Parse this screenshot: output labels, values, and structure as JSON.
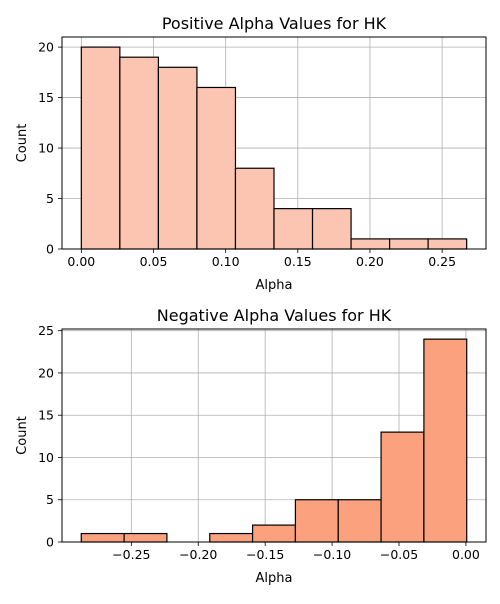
{
  "chart_data": [
    {
      "type": "bar",
      "title": "Positive Alpha Values for HK",
      "xlabel": "Alpha",
      "ylabel": "Count",
      "bin_edges": [
        0.0,
        0.0267,
        0.0534,
        0.0801,
        0.1068,
        0.1335,
        0.1602,
        0.1869,
        0.2136,
        0.2403,
        0.267
      ],
      "values": [
        20,
        19,
        18,
        16,
        8,
        4,
        4,
        1,
        1,
        1
      ],
      "xlim": [
        -0.0134,
        0.2804
      ],
      "ylim": [
        0,
        21
      ],
      "xticks": [
        0.0,
        0.05,
        0.1,
        0.15,
        0.2,
        0.25
      ],
      "xtick_labels": [
        "0.00",
        "0.05",
        "0.10",
        "0.15",
        "0.20",
        "0.25"
      ],
      "yticks": [
        0,
        5,
        10,
        15,
        20
      ],
      "ytick_labels": [
        "0",
        "5",
        "10",
        "15",
        "20"
      ],
      "grid": true,
      "bar_color": "#fcc5b1",
      "edge_color": "#000000"
    },
    {
      "type": "bar",
      "title": "Negative Alpha Values for HK",
      "xlabel": "Alpha",
      "ylabel": "Count",
      "bin_edges": [
        -0.2874,
        -0.2554,
        -0.2234,
        -0.1914,
        -0.1594,
        -0.1274,
        -0.0954,
        -0.0634,
        -0.0314,
        0.0006
      ],
      "values": [
        1,
        1,
        0,
        1,
        2,
        5,
        5,
        13,
        24
      ],
      "xlim": [
        -0.3018,
        0.015
      ],
      "ylim": [
        0,
        25.2
      ],
      "xticks": [
        -0.25,
        -0.2,
        -0.15,
        -0.1,
        -0.05,
        0.0
      ],
      "xtick_labels": [
        "−0.25",
        "−0.20",
        "−0.15",
        "−0.10",
        "−0.05",
        "0.00"
      ],
      "yticks": [
        0,
        5,
        10,
        15,
        20,
        25
      ],
      "ytick_labels": [
        "0",
        "5",
        "10",
        "15",
        "20",
        "25"
      ],
      "grid": true,
      "bar_color": "#fca17e",
      "edge_color": "#000000"
    }
  ]
}
